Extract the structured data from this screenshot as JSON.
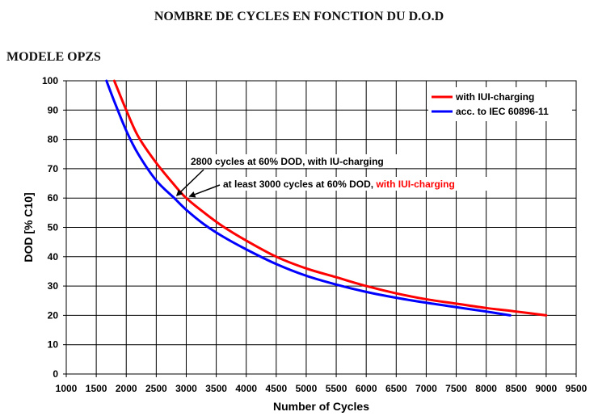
{
  "document": {
    "title": "NOMBRE DE CYCLES EN FONCTION DU D.O.D",
    "subtitle": "MODELE OPZS"
  },
  "chart_data": {
    "type": "line",
    "title": "",
    "xlabel": "Number of Cycles",
    "ylabel": "DOD [% C10]",
    "xlim": [
      1000,
      9500
    ],
    "ylim": [
      0,
      100
    ],
    "xticks": [
      1000,
      1500,
      2000,
      2500,
      3000,
      3500,
      4000,
      4500,
      5000,
      5500,
      6000,
      6500,
      7000,
      7500,
      8000,
      8500,
      9000,
      9500
    ],
    "yticks": [
      0,
      10,
      20,
      30,
      40,
      50,
      60,
      70,
      80,
      90,
      100
    ],
    "grid": true,
    "legend_position": "top-right",
    "series": [
      {
        "name": "with IUI-charging",
        "color": "#ff0000",
        "x": [
          1800,
          2000,
          2200,
          2500,
          2800,
          3000,
          3300,
          3600,
          4000,
          4500,
          5000,
          5500,
          6000,
          6500,
          7000,
          7500,
          8000,
          8500,
          9000
        ],
        "y": [
          100,
          90,
          81,
          72,
          64.5,
          60,
          55,
          50.5,
          45.5,
          40,
          36,
          33,
          30,
          27.5,
          25.5,
          24,
          22.5,
          21.3,
          20
        ]
      },
      {
        "name": "acc. to IEC 60896-11",
        "color": "#0000ff",
        "x": [
          1670,
          1800,
          2000,
          2200,
          2500,
          2800,
          3000,
          3300,
          3600,
          4000,
          4500,
          5000,
          5500,
          6000,
          6500,
          7000,
          7500,
          8000,
          8400
        ],
        "y": [
          100,
          93,
          83,
          75,
          66,
          60,
          56,
          51,
          47,
          42.5,
          37.5,
          33.5,
          30.5,
          28,
          26,
          24.3,
          22.8,
          21.3,
          20
        ]
      }
    ],
    "annotations": [
      {
        "text": "2800 cycles at 60% DOD, with IU-charging",
        "arrow_to": [
          2800,
          60
        ]
      },
      {
        "text": "at least 3000 cycles at 60% DOD, ",
        "text_highlight": "with IUI-charging",
        "highlight_color": "#ff0000",
        "arrow_to": [
          3000,
          60
        ]
      }
    ]
  }
}
